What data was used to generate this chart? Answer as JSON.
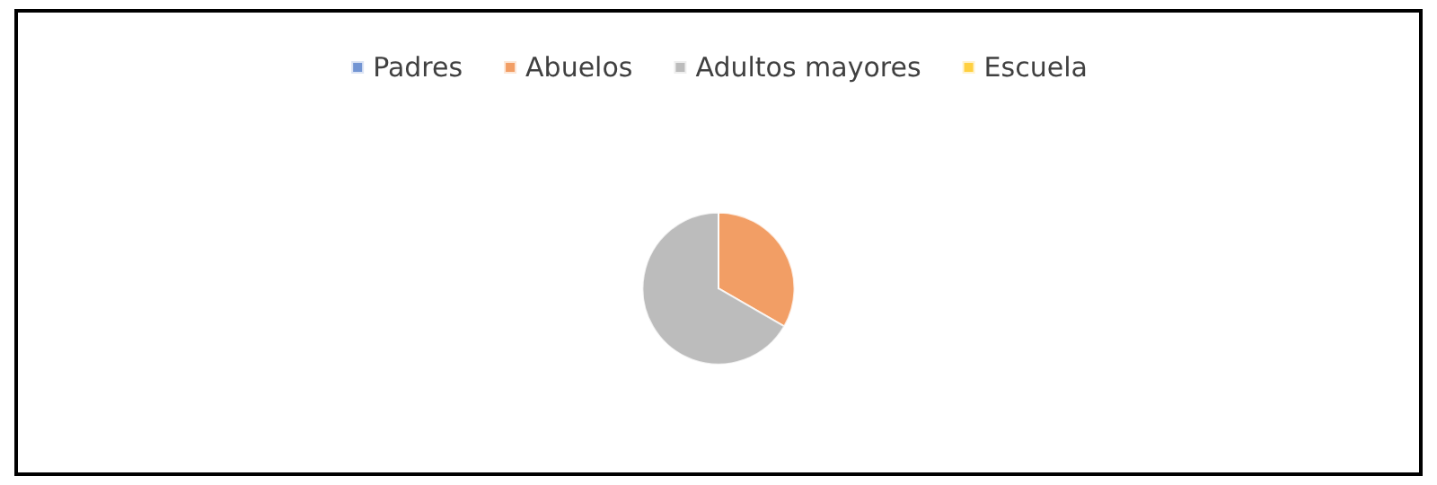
{
  "chart_data": {
    "type": "pie",
    "categories": [
      "Padres",
      "Abuelos",
      "Adultos mayores",
      "Escuela"
    ],
    "values": [
      0,
      33.3,
      66.7,
      0
    ],
    "colors": [
      "#4472c4",
      "#ed7d31",
      "#a5a5a5",
      "#ffc000"
    ],
    "legend": "top"
  }
}
